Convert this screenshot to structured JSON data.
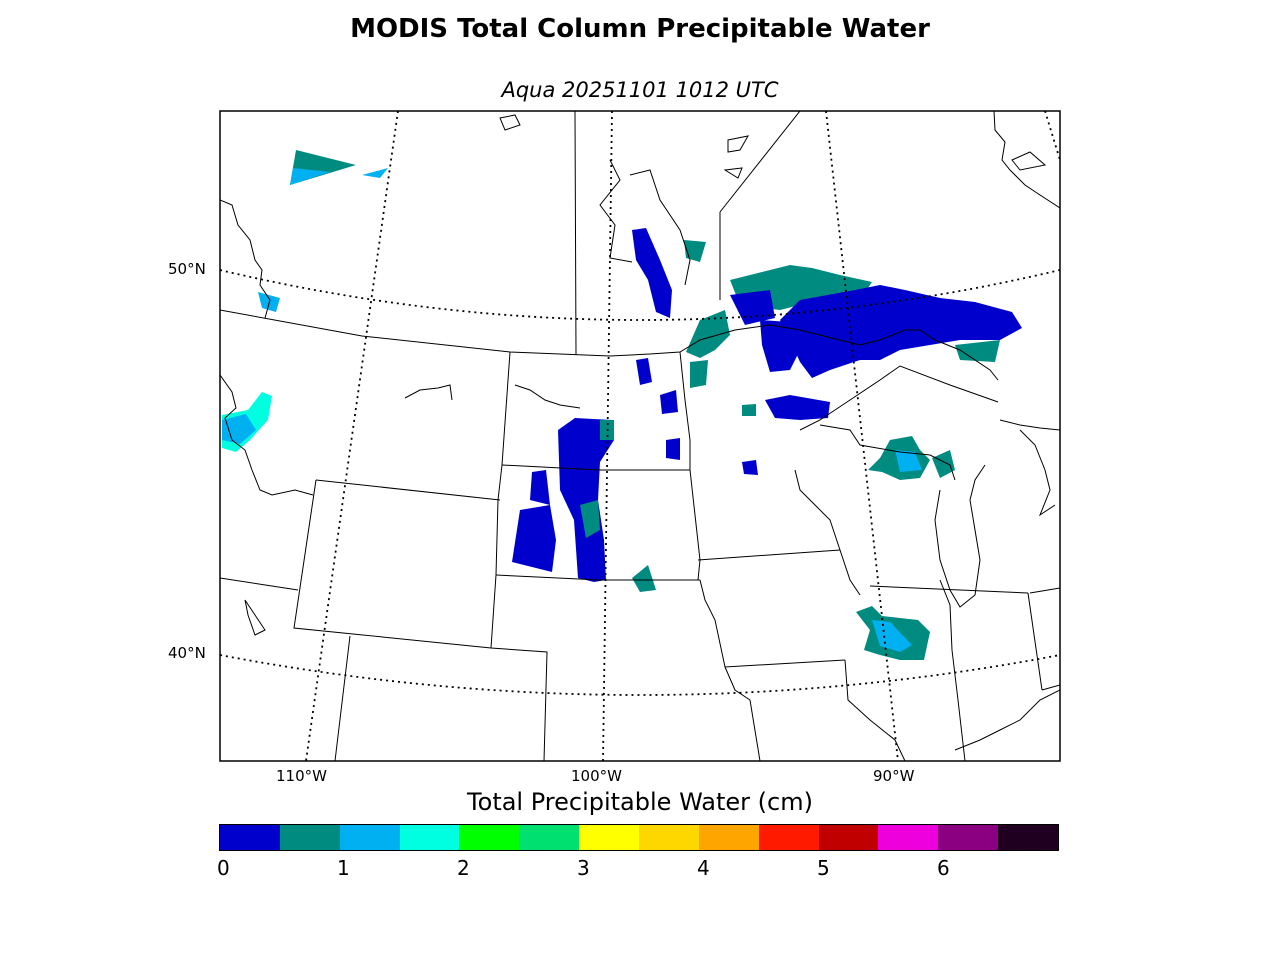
{
  "title": "MODIS Total Column Precipitable Water",
  "subtitle": "Aqua 20251101 1012 UTC",
  "lat_labels": [
    "50°N",
    "40°N"
  ],
  "lon_labels": [
    "110°W",
    "100°W",
    "90°W"
  ],
  "colorbar": {
    "title": "Total Precipitable Water (cm)",
    "colors": [
      "#0000cc",
      "#008b80",
      "#00b0f0",
      "#00ffe0",
      "#00ff00",
      "#00e070",
      "#ffff00",
      "#ffd700",
      "#ffa500",
      "#ff1a00",
      "#c00000",
      "#ee00dd",
      "#8b0080",
      "#200020"
    ],
    "tick_labels": [
      "0",
      "1",
      "2",
      "3",
      "4",
      "5",
      "6"
    ]
  }
}
